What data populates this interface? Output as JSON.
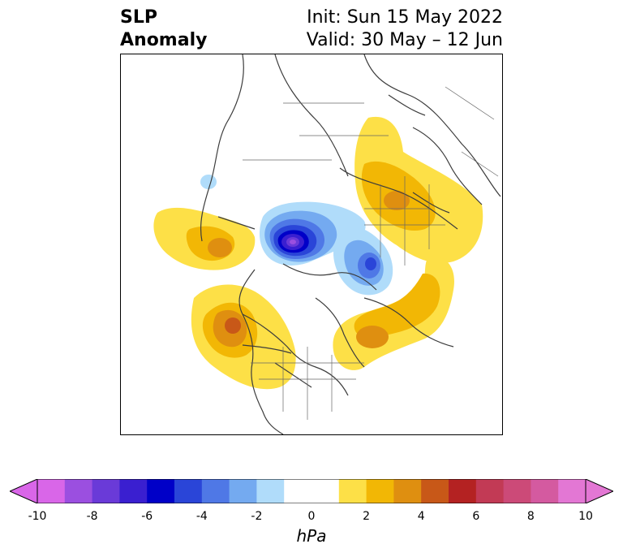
{
  "title": {
    "left_line1": "SLP",
    "left_line2": "Anomaly",
    "right_line1": "Init: Sun 15 May 2022",
    "right_line2": "Valid: 30 May – 12 Jun"
  },
  "map": {
    "projection": "north-polar-stereographic",
    "field": "sea level pressure anomaly",
    "features": [
      {
        "name": "negative-anomaly-arctic-canada",
        "min_value": -8
      },
      {
        "name": "negative-anomaly-kara-sea",
        "min_value": -5
      },
      {
        "name": "positive-anomaly-western-russia",
        "max_value": 5
      },
      {
        "name": "positive-anomaly-gulf-of-alaska",
        "max_value": 6
      },
      {
        "name": "positive-anomaly-aleutians",
        "max_value": 4
      },
      {
        "name": "positive-anomaly-north-atlantic",
        "max_value": 5
      }
    ]
  },
  "colorbar": {
    "label": "hPa",
    "ticks": [
      "-10",
      "-8",
      "-6",
      "-4",
      "-2",
      "0",
      "2",
      "4",
      "6",
      "8",
      "10"
    ],
    "min": -10,
    "max": 10,
    "step": 1,
    "colors": [
      "#d966e8",
      "#9b4fe0",
      "#6a3ad8",
      "#3a1fd0",
      "#0000c8",
      "#2a45d8",
      "#4f78e6",
      "#74aaf0",
      "#b0dcfa",
      "#ffffff",
      "#ffffff",
      "#fde047",
      "#f2b705",
      "#df8f10",
      "#c85818",
      "#b42222",
      "#c23a55",
      "#cc4a78",
      "#d45aa0",
      "#e377d4"
    ],
    "extend": "both"
  }
}
